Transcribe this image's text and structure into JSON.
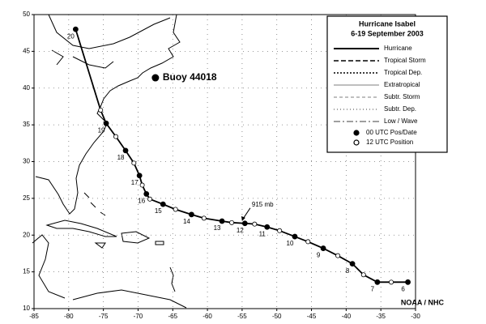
{
  "chart_data": {
    "type": "track",
    "title": "Hurricane Isabel",
    "subtitle": "6-19 September 2003",
    "credit": "NOAA / NHC",
    "xlim": [
      -85,
      -30
    ],
    "ylim": [
      10,
      50
    ],
    "xticks": [
      -85,
      -80,
      -75,
      -70,
      -65,
      -60,
      -55,
      -50,
      -45,
      -40,
      -35,
      -30
    ],
    "yticks": [
      10,
      15,
      20,
      25,
      30,
      35,
      40,
      45,
      50
    ],
    "grid": true,
    "track": {
      "color": "#000000",
      "x": [
        -31.1,
        -33.5,
        -35.5,
        -37.5,
        -39.1,
        -41.2,
        -43.3,
        -45.5,
        -47.4,
        -49.6,
        -51.4,
        -53.2,
        -54.6,
        -56.5,
        -57.9,
        -60.5,
        -62.3,
        -64.6,
        -66.4,
        -68.3,
        -68.8,
        -69.4,
        -69.8,
        -70.6,
        -71.8,
        -73.2,
        -74.6,
        -75.4,
        -79.0
      ],
      "y": [
        13.6,
        13.6,
        13.6,
        14.6,
        16.1,
        17.2,
        18.2,
        19.1,
        19.8,
        20.6,
        21.1,
        21.5,
        21.6,
        21.7,
        21.9,
        22.3,
        22.8,
        23.5,
        24.2,
        24.9,
        25.6,
        26.8,
        28.1,
        29.8,
        31.5,
        33.4,
        35.2,
        37.0,
        48.0
      ],
      "labels": [
        "6",
        null,
        "7",
        null,
        "8",
        null,
        "9",
        null,
        "10",
        null,
        "11",
        null,
        "12",
        null,
        "13",
        null,
        "14",
        null,
        "15",
        null,
        "16",
        null,
        "17",
        null,
        "18",
        null,
        "19",
        null,
        "20"
      ]
    },
    "annotation": {
      "text": "915 mb",
      "x": -55.0,
      "y": 21.7
    },
    "buoy": {
      "label": "Buoy 44018",
      "x": -67.5,
      "y": 41.4
    },
    "legend": [
      {
        "label": "Hurricane",
        "dash": "none",
        "width": 2
      },
      {
        "label": "Tropical Storm",
        "dash": "6 3",
        "width": 1.5
      },
      {
        "label": "Tropical Dep.",
        "dash": "2 2",
        "width": 1.5
      },
      {
        "label": "Extratropical",
        "dash": "none",
        "width": 0.6
      },
      {
        "label": "Subtr. Storm",
        "dash": "4 3",
        "width": 0.6
      },
      {
        "label": "Subtr. Dep.",
        "dash": "1 3",
        "width": 0.8
      },
      {
        "label": "Low / Wave",
        "dash": "8 3 2 3",
        "width": 0.8
      }
    ],
    "legend_points": [
      "00 UTC Pos/Date",
      "12 UTC Position"
    ]
  }
}
